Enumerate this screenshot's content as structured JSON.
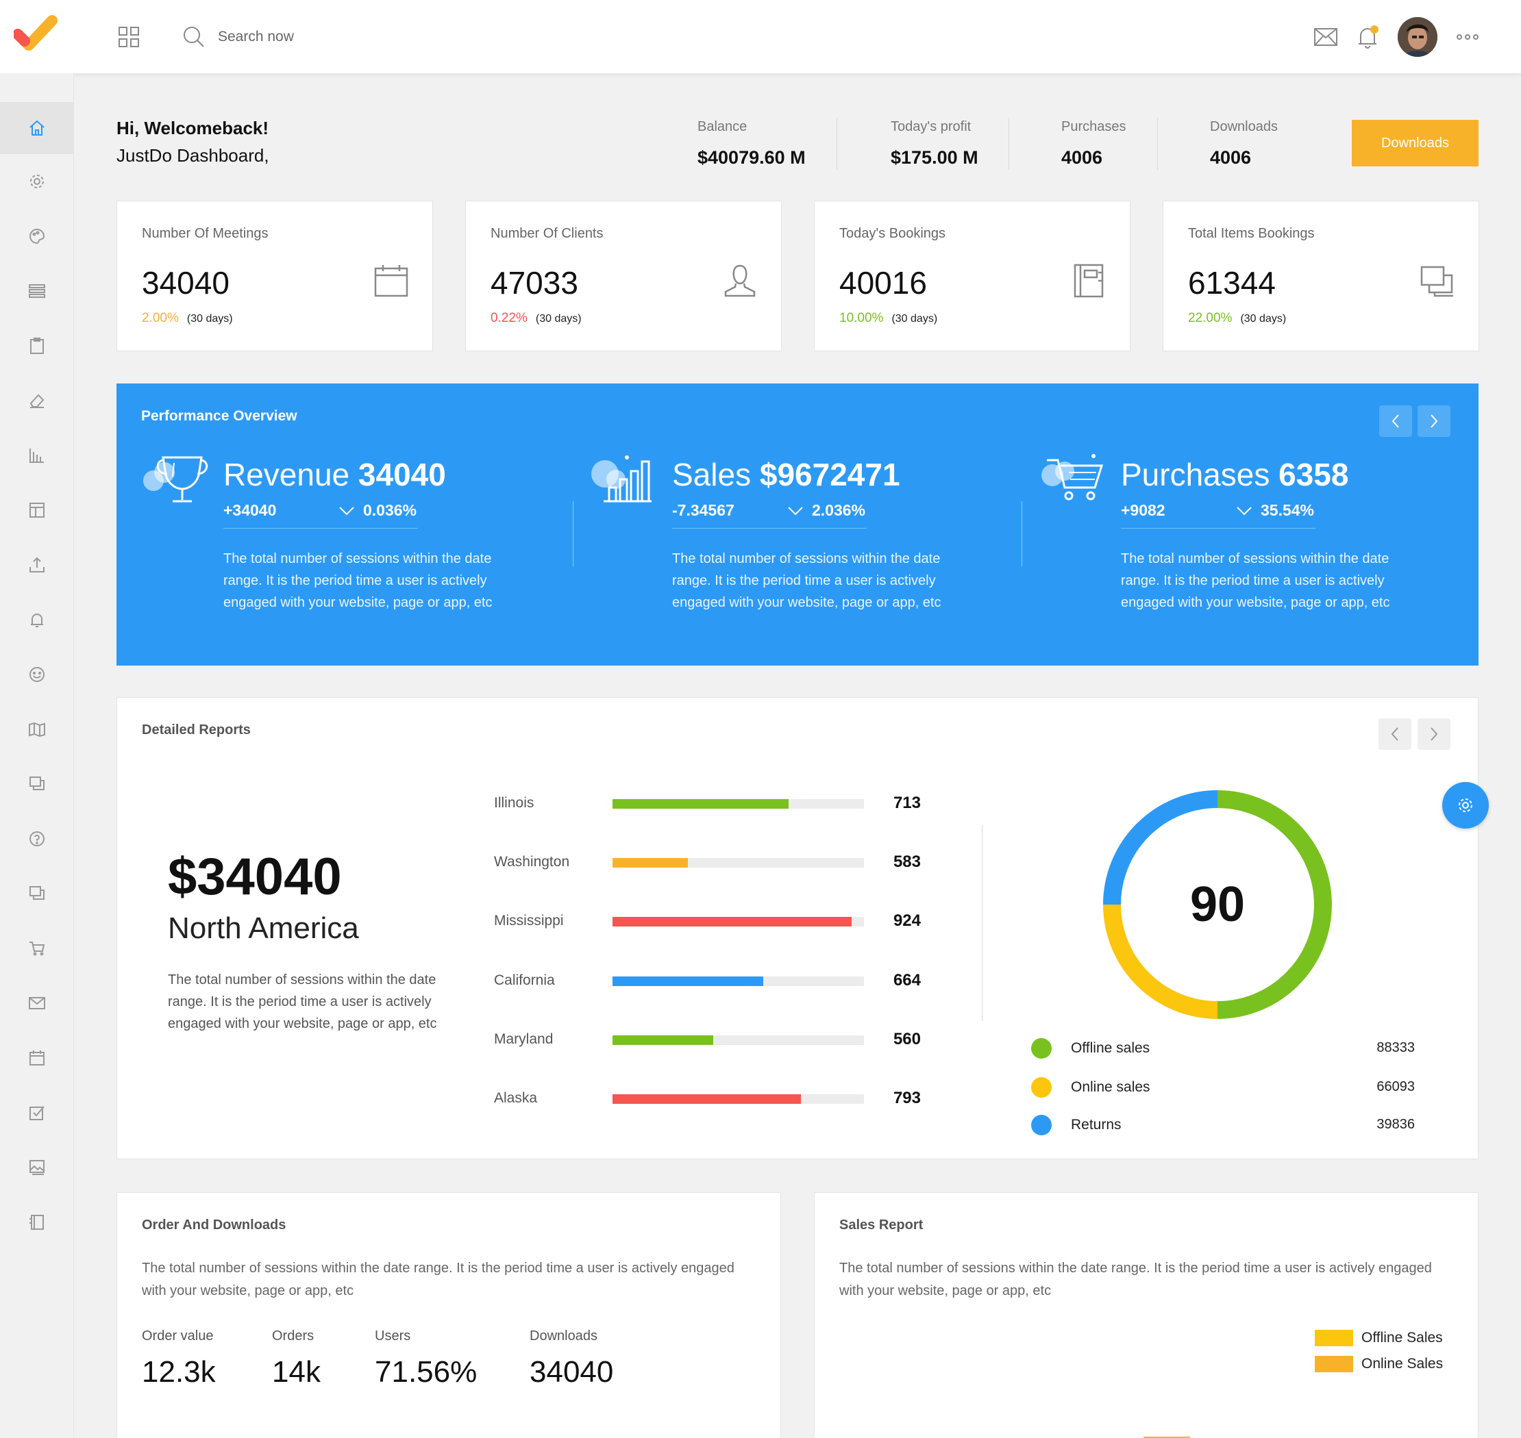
{
  "header": {
    "search_placeholder": "Search now",
    "icons": [
      "logo-check-icon",
      "apps-grid-icon",
      "search-icon",
      "mail-icon",
      "bell-icon",
      "avatar",
      "more-dots-icon"
    ],
    "notification_dot_color": "#f8b22a"
  },
  "sidebar": {
    "icons": [
      "home-icon",
      "settings-icon",
      "palette-icon",
      "list-icon",
      "clipboard-icon",
      "eraser-icon",
      "bar-chart-icon",
      "layout-icon",
      "upload-icon",
      "bell-icon",
      "smile-icon",
      "map-icon",
      "layers-icon",
      "help-icon",
      "copy-icon",
      "cart-icon",
      "mail-icon",
      "calendar-icon",
      "checkbox-icon",
      "image-icon",
      "book-icon"
    ],
    "active_index": 0
  },
  "welcome": {
    "title": "Hi, Welcomeback!",
    "subtitle": "JustDo Dashboard,"
  },
  "stats": [
    {
      "label": "Balance",
      "value": "$40079.60 M"
    },
    {
      "label": "Today's profit",
      "value": "$175.00 M"
    },
    {
      "label": "Purchases",
      "value": "4006"
    },
    {
      "label": "Downloads",
      "value": "4006"
    }
  ],
  "downloads_button": "Downloads",
  "kpis": [
    {
      "label": "Number Of Meetings",
      "value": "34040",
      "pct": "2.00%",
      "pct_color": "#f8b22a",
      "period": "(30 days)",
      "icon": "calendar-icon"
    },
    {
      "label": "Number Of Clients",
      "value": "47033",
      "pct": "0.22%",
      "pct_color": "#f6564f",
      "period": "(30 days)",
      "icon": "user-icon"
    },
    {
      "label": "Today's Bookings",
      "value": "40016",
      "pct": "10.00%",
      "pct_color": "#79c11f",
      "period": "(30 days)",
      "icon": "book-icon"
    },
    {
      "label": "Total Items Bookings",
      "value": "61344",
      "pct": "22.00%",
      "pct_color": "#79c11f",
      "period": "(30 days)",
      "icon": "layers-icon"
    }
  ],
  "performance": {
    "title": "Performance Overview",
    "columns": [
      {
        "name": "Revenue",
        "value": "34040",
        "delta": "+34040",
        "pct": "0.036%",
        "icon": "trophy-icon",
        "desc": "The total number of sessions within the date range. It is the period time a user is actively engaged with your website, page or app, etc"
      },
      {
        "name": "Sales",
        "value": "$9672471",
        "delta": "-7.34567",
        "pct": "2.036%",
        "icon": "bar-chart-icon",
        "desc": "The total number of sessions within the date range. It is the period time a user is actively engaged with your website, page or app, etc"
      },
      {
        "name": "Purchases",
        "value": "6358",
        "delta": "+9082",
        "pct": "35.54%",
        "icon": "cart-icon",
        "desc": "The total number of sessions within the date range. It is the period time a user is actively engaged with your website, page or app, etc"
      }
    ]
  },
  "reports": {
    "title": "Detailed Reports",
    "amount": "$34040",
    "region": "North America",
    "desc": "The total number of sessions within the date range. It is the period time a user is actively engaged with your website, page or app, etc",
    "bars": [
      {
        "label": "Illinois",
        "value": "713",
        "fill": 0.7,
        "color": "#79c11f"
      },
      {
        "label": "Washington",
        "value": "583",
        "fill": 0.3,
        "color": "#f8b22a"
      },
      {
        "label": "Mississippi",
        "value": "924",
        "fill": 0.95,
        "color": "#f6564f"
      },
      {
        "label": "California",
        "value": "664",
        "fill": 0.6,
        "color": "#2c9af5"
      },
      {
        "label": "Maryland",
        "value": "560",
        "fill": 0.4,
        "color": "#79c11f"
      },
      {
        "label": "Alaska",
        "value": "793",
        "fill": 0.75,
        "color": "#f6564f"
      }
    ],
    "donut_center": "90",
    "legend": [
      {
        "name": "Offline sales",
        "value": "88333",
        "color": "#79c11f"
      },
      {
        "name": "Online sales",
        "value": "66093",
        "color": "#fcc50e"
      },
      {
        "name": "Returns",
        "value": "39836",
        "color": "#2c9af5"
      }
    ]
  },
  "orders": {
    "title": "Order And Downloads",
    "desc": "The total number of sessions within the date range. It is the period time a user is actively engaged with your website, page or app, etc",
    "metrics": [
      {
        "label": "Order value",
        "value": "12.3k"
      },
      {
        "label": "Orders",
        "value": "14k"
      },
      {
        "label": "Users",
        "value": "71.56%"
      },
      {
        "label": "Downloads",
        "value": "34040"
      }
    ]
  },
  "sales_report": {
    "title": "Sales Report",
    "desc": "The total number of sessions within the date range. It is the period time a user is actively engaged with your website, page or app, etc",
    "legend": [
      {
        "name": "Offline Sales",
        "color": "#fcc50e"
      },
      {
        "name": "Online Sales",
        "color": "#f8b22a"
      }
    ]
  },
  "chart_data": {
    "type": "bar",
    "series": [
      {
        "name": "Offline Sales",
        "color": "#fcc50e"
      },
      {
        "name": "Online Sales",
        "color": "#f8b22a"
      }
    ],
    "note_visible": "bars cut off at bottom of screenshot"
  }
}
